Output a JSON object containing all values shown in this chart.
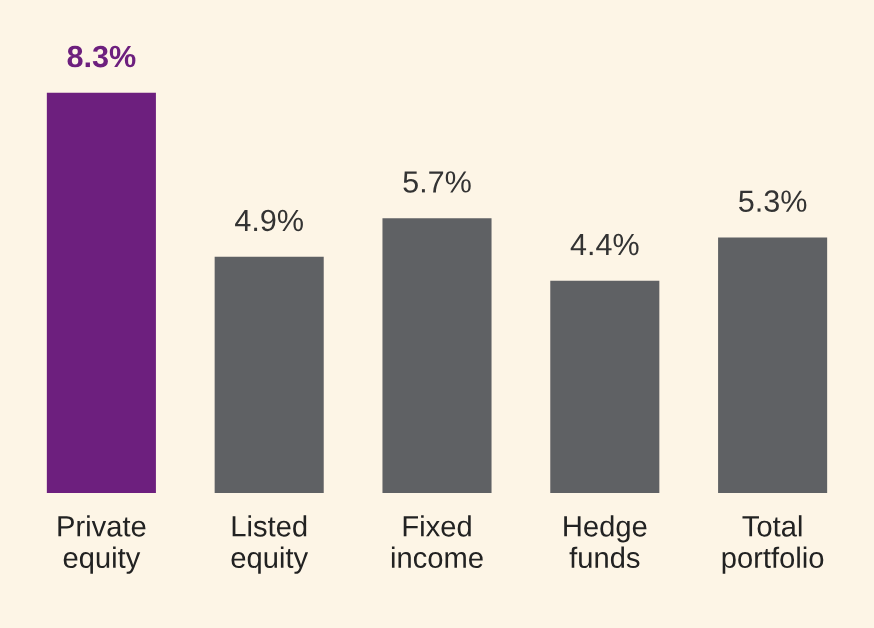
{
  "chart_data": {
    "type": "bar",
    "categories": [
      "Private\nequity",
      "Listed\nequity",
      "Fixed\nincome",
      "Hedge\nfunds",
      "Total\nportfolio"
    ],
    "values": [
      8.3,
      4.9,
      5.7,
      4.4,
      5.3
    ],
    "value_labels": [
      "8.3%",
      "4.9%",
      "5.7%",
      "4.4%",
      "5.3%"
    ],
    "colors": [
      "#6d1f7e",
      "#5f6164",
      "#5f6164",
      "#5f6164",
      "#5f6164"
    ],
    "grid": false,
    "legend": false,
    "tick_labels": "x"
  }
}
